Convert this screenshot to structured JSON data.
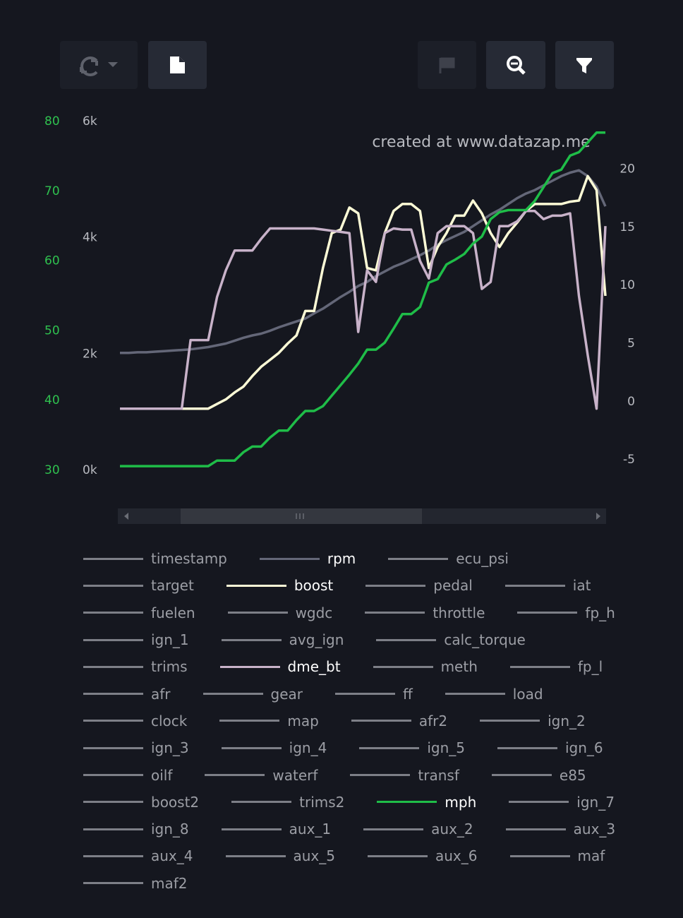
{
  "watermark": "created at www.datazap.me",
  "chart_data": {
    "type": "line",
    "ylim": [
      0,
      6000
    ],
    "yticks": [
      {
        "value": 0,
        "label": "0k"
      },
      {
        "value": 2000,
        "label": "2k"
      },
      {
        "value": 4000,
        "label": "4k"
      },
      {
        "value": 6000,
        "label": "6k"
      }
    ],
    "y2lim": [
      30,
      80
    ],
    "y2ticks": [
      30,
      40,
      50,
      60,
      70,
      80
    ],
    "y2color": "#2fc24f",
    "y3lim": [
      -5.9,
      24.1
    ],
    "y3ticks": [
      -5,
      0,
      5,
      10,
      15,
      20
    ],
    "series": [
      {
        "name": "timestamp",
        "color": "#7d7f87"
      },
      {
        "name": "rpm",
        "color": "#646778",
        "axis": "y",
        "values": [
          2020,
          2020,
          2030,
          2030,
          2040,
          2050,
          2060,
          2070,
          2080,
          2100,
          2120,
          2150,
          2180,
          2230,
          2280,
          2320,
          2350,
          2400,
          2460,
          2510,
          2560,
          2610,
          2700,
          2780,
          2880,
          2980,
          3070,
          3170,
          3240,
          3340,
          3420,
          3500,
          3560,
          3630,
          3700,
          3780,
          3880,
          3960,
          4030,
          4100,
          4200,
          4300,
          4400,
          4480,
          4580,
          4680,
          4760,
          4820,
          4900,
          4980,
          5060,
          5120,
          5160,
          5060,
          4880,
          4540
        ]
      },
      {
        "name": "ecu_psi",
        "color": "#7d7f87"
      },
      {
        "name": "target",
        "color": "#7d7f87"
      },
      {
        "name": "boost",
        "color": "#fdfbd6",
        "axis": "y3",
        "values": [
          -0.6,
          -0.6,
          -0.6,
          -0.6,
          -0.6,
          -0.6,
          -0.6,
          -0.6,
          -0.6,
          -0.6,
          -0.6,
          -0.2,
          0.2,
          0.8,
          1.3,
          2.2,
          3.0,
          3.6,
          4.2,
          5.0,
          5.7,
          7.8,
          7.8,
          11.5,
          14.5,
          14.8,
          16.7,
          16.2,
          11.5,
          11.3,
          14.5,
          16.4,
          17,
          17,
          16.4,
          11.5,
          13.3,
          14.5,
          16,
          16,
          17.3,
          16.2,
          14.5,
          13.3,
          14.5,
          15.4,
          16.4,
          17,
          17,
          17,
          17,
          17.2,
          17.3,
          19.4,
          18.2,
          9.1
        ]
      },
      {
        "name": "pedal",
        "color": "#7d7f87"
      },
      {
        "name": "iat",
        "color": "#7d7f87"
      },
      {
        "name": "fuelen",
        "color": "#7d7f87"
      },
      {
        "name": "wgdc",
        "color": "#7d7f87"
      },
      {
        "name": "throttle",
        "color": "#7d7f87"
      },
      {
        "name": "fp_h",
        "color": "#7d7f87"
      },
      {
        "name": "ign_1",
        "color": "#7d7f87"
      },
      {
        "name": "avg_ign",
        "color": "#7d7f87"
      },
      {
        "name": "calc_torque",
        "color": "#7d7f87"
      },
      {
        "name": "trims",
        "color": "#7d7f87"
      },
      {
        "name": "dme_bt",
        "color": "#c8b2c9",
        "axis": "y3",
        "values": [
          -0.6,
          -0.6,
          -0.6,
          -0.6,
          -0.6,
          -0.6,
          -0.6,
          -0.6,
          5.3,
          5.3,
          5.3,
          9,
          11.3,
          13,
          13,
          13,
          14,
          14.9,
          14.9,
          14.9,
          14.9,
          14.9,
          14.9,
          14.8,
          14.7,
          14.6,
          14.5,
          6.0,
          11.3,
          10.3,
          14.5,
          14.9,
          14.8,
          14.8,
          12.1,
          10.6,
          14.5,
          15.1,
          15.1,
          15.1,
          14.5,
          9.7,
          10.3,
          15.1,
          15.1,
          15.5,
          16.4,
          16.4,
          15.7,
          16,
          16,
          16.2,
          9.1,
          4.0,
          -0.6,
          15.1
        ]
      },
      {
        "name": "meth",
        "color": "#7d7f87"
      },
      {
        "name": "fp_l",
        "color": "#7d7f87"
      },
      {
        "name": "afr",
        "color": "#7d7f87"
      },
      {
        "name": "gear",
        "color": "#7d7f87"
      },
      {
        "name": "ff",
        "color": "#7d7f87"
      },
      {
        "name": "load",
        "color": "#7d7f87"
      },
      {
        "name": "clock",
        "color": "#7d7f87"
      },
      {
        "name": "map",
        "color": "#7d7f87"
      },
      {
        "name": "afr2",
        "color": "#7d7f87"
      },
      {
        "name": "ign_2",
        "color": "#7d7f87"
      },
      {
        "name": "ign_3",
        "color": "#7d7f87"
      },
      {
        "name": "ign_4",
        "color": "#7d7f87"
      },
      {
        "name": "ign_5",
        "color": "#7d7f87"
      },
      {
        "name": "ign_6",
        "color": "#7d7f87"
      },
      {
        "name": "oilf",
        "color": "#7d7f87"
      },
      {
        "name": "waterf",
        "color": "#7d7f87"
      },
      {
        "name": "transf",
        "color": "#7d7f87"
      },
      {
        "name": "e85",
        "color": "#7d7f87"
      },
      {
        "name": "boost2",
        "color": "#7d7f87"
      },
      {
        "name": "trims2",
        "color": "#7d7f87"
      },
      {
        "name": "mph",
        "color": "#1fbd48",
        "axis": "y2",
        "values": [
          30.6,
          30.6,
          30.6,
          30.6,
          30.6,
          30.6,
          30.6,
          30.6,
          30.6,
          30.6,
          30.6,
          31.4,
          31.4,
          31.4,
          32.6,
          33.4,
          33.4,
          34.7,
          35.7,
          35.7,
          37.2,
          38.5,
          38.5,
          39.2,
          40.7,
          42.2,
          43.7,
          45.3,
          47.3,
          47.3,
          48.3,
          50.3,
          52.4,
          52.4,
          53.4,
          56.9,
          57.4,
          59.5,
          60.2,
          61,
          62.5,
          63.5,
          66,
          67,
          67.3,
          67.3,
          67.3,
          68.6,
          70.6,
          72.6,
          73.1,
          75.1,
          75.6,
          77,
          78.4,
          78.4
        ]
      },
      {
        "name": "ign_7",
        "color": "#7d7f87"
      },
      {
        "name": "ign_8",
        "color": "#7d7f87"
      },
      {
        "name": "aux_1",
        "color": "#7d7f87"
      },
      {
        "name": "aux_2",
        "color": "#7d7f87"
      },
      {
        "name": "aux_3",
        "color": "#7d7f87"
      },
      {
        "name": "aux_4",
        "color": "#7d7f87"
      },
      {
        "name": "aux_5",
        "color": "#7d7f87"
      },
      {
        "name": "aux_6",
        "color": "#7d7f87"
      },
      {
        "name": "maf",
        "color": "#7d7f87"
      },
      {
        "name": "maf2",
        "color": "#7d7f87"
      }
    ]
  }
}
